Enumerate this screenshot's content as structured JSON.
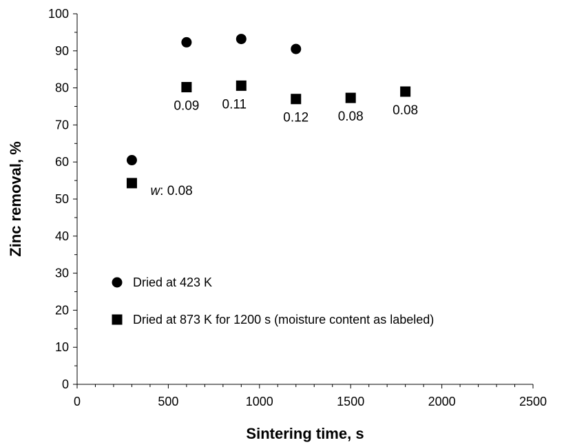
{
  "chart_data": {
    "type": "scatter",
    "title": "",
    "xlabel": "Sintering time, s",
    "ylabel": "Zinc removal, %",
    "xlim": [
      0,
      2500
    ],
    "ylim": [
      0,
      100
    ],
    "x_ticks": [
      0,
      500,
      1000,
      1500,
      2000,
      2500
    ],
    "y_ticks": [
      0,
      10,
      20,
      30,
      40,
      50,
      60,
      70,
      80,
      90,
      100
    ],
    "x_tick_labels": [
      "0",
      "500",
      "1000",
      "1500",
      "2000",
      "2500"
    ],
    "y_tick_labels": [
      "0",
      "10",
      "20",
      "30",
      "40",
      "50",
      "60",
      "70",
      "80",
      "90",
      "100"
    ],
    "grid": false,
    "legend_placement": "lower-left",
    "series": [
      {
        "name": "Dried at 423 K",
        "marker": "circle",
        "color": "#000000",
        "points": [
          {
            "x": 300,
            "y": 60.5
          },
          {
            "x": 600,
            "y": 92.3
          },
          {
            "x": 900,
            "y": 93.2
          },
          {
            "x": 1200,
            "y": 90.5
          }
        ]
      },
      {
        "name": "Dried at 873 K for 1200 s (moisture content as labeled)",
        "marker": "square",
        "color": "#000000",
        "points": [
          {
            "x": 300,
            "y": 54.3,
            "label_prefix": "w",
            "label": ": 0.08"
          },
          {
            "x": 600,
            "y": 80.2,
            "label": "0.09"
          },
          {
            "x": 900,
            "y": 80.6,
            "label": "0.11"
          },
          {
            "x": 1200,
            "y": 77.0,
            "label": "0.12"
          },
          {
            "x": 1500,
            "y": 77.3,
            "label": "0.08"
          },
          {
            "x": 1800,
            "y": 79.0,
            "label": "0.08"
          }
        ]
      }
    ]
  }
}
